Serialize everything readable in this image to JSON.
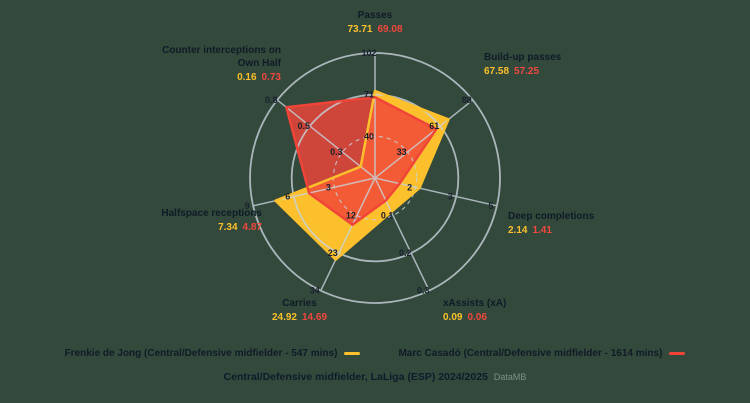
{
  "colors": {
    "background": "#32493C",
    "grid": "#C9D2DB",
    "tick_text": "#1A212E",
    "label_text": "#101B26",
    "yellow": "#FCC02C",
    "red": "#F04438",
    "watermark": "#7F9088"
  },
  "chart_data": {
    "type": "radar",
    "title": "Central/Defensive midfielder, LaLiga (ESP) 2024/2025",
    "rings": 3,
    "legend_position": "bottom",
    "axes": [
      {
        "label": "Passes",
        "ticks": [
          40,
          71,
          102
        ]
      },
      {
        "label": "Build-up passes",
        "ticks": [
          33,
          61,
          88
        ]
      },
      {
        "label": "Deep completions",
        "ticks": [
          2,
          3,
          5
        ]
      },
      {
        "label": "xAssists (xA)",
        "ticks": [
          0.1,
          0.2,
          0.3
        ]
      },
      {
        "label": "Carries",
        "ticks": [
          12,
          23,
          34
        ]
      },
      {
        "label": "Halfspace receptions",
        "ticks": [
          3,
          6,
          9
        ]
      },
      {
        "label": "Counter interceptions on Own Half",
        "ticks": [
          0.3,
          0.5,
          0.8
        ]
      }
    ],
    "series": [
      {
        "name": "Frenkie de Jong",
        "legend_label": "Frenkie de Jong (Central/Defensive midfielder - 547 mins)",
        "color": "#FCC02C",
        "values": [
          73.71,
          67.58,
          2.14,
          0.09,
          24.92,
          7.34,
          0.16
        ]
      },
      {
        "name": "Marc Casadó",
        "legend_label": "Marc Casadó (Central/Defensive midfielder - 1614 mins)",
        "color": "#F04438",
        "values": [
          69.08,
          57.25,
          1.41,
          0.06,
          14.69,
          4.87,
          0.73
        ]
      }
    ]
  },
  "footer": {
    "title": "Central/Defensive midfielder, LaLiga (ESP) 2024/2025",
    "watermark": "DataMB"
  }
}
